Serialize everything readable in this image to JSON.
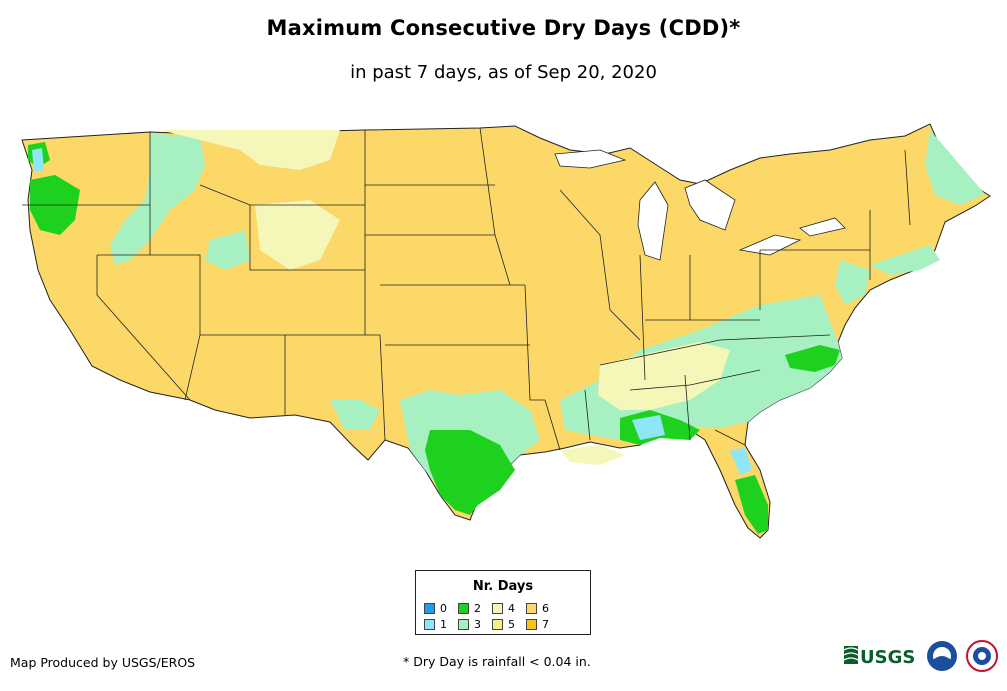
{
  "header": {
    "title": "Maximum Consecutive Dry Days (CDD)*",
    "subtitle": "in past 7 days, as of Sep 20, 2020"
  },
  "legend": {
    "title": "Nr. Days",
    "items": [
      {
        "label": "0",
        "color": "#1e9cf0"
      },
      {
        "label": "1",
        "color": "#8fe6f7"
      },
      {
        "label": "2",
        "color": "#1fd11f"
      },
      {
        "label": "3",
        "color": "#a6f0c2"
      },
      {
        "label": "4",
        "color": "#f5f7b8"
      },
      {
        "label": "5",
        "color": "#f7ec86"
      },
      {
        "label": "6",
        "color": "#fbd867"
      },
      {
        "label": "7",
        "color": "#f9c21a"
      }
    ]
  },
  "footer": {
    "credit": "Map Produced by USGS/EROS",
    "footnote": "* Dry Day is rainfall < 0.04 in.",
    "logo_text": "USGS"
  },
  "map": {
    "base_color": "#fbd867",
    "border_color": "#222222"
  }
}
